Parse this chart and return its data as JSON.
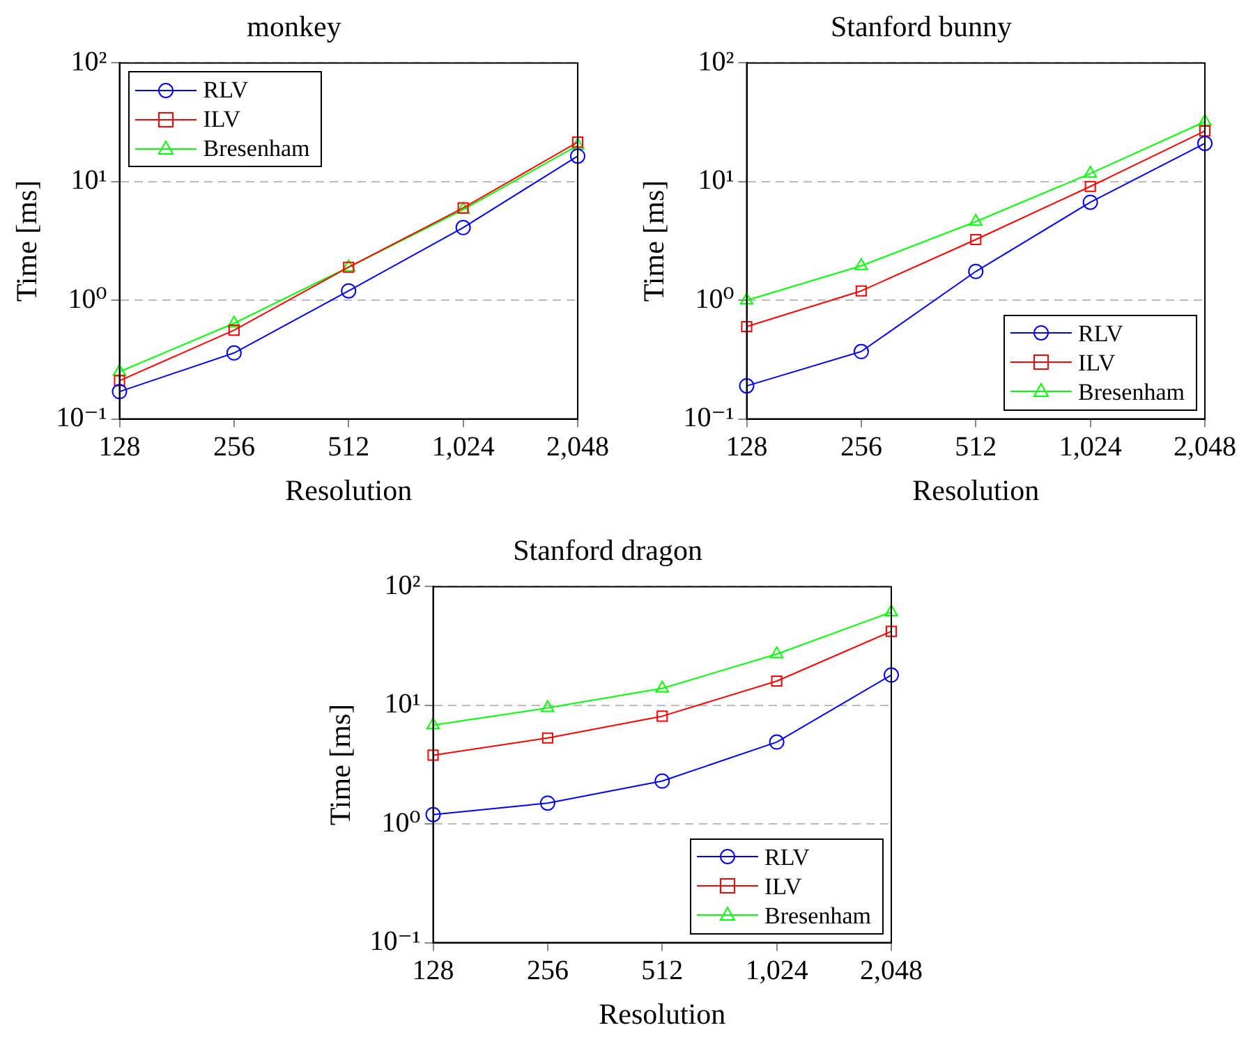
{
  "chart_data": [
    {
      "type": "line",
      "title": "monkey",
      "xlabel": "Resolution",
      "ylabel": "Time [ms]",
      "categories": [
        "128",
        "256",
        "512",
        "1,024",
        "2,048"
      ],
      "log": "y",
      "ylim": [
        0.1,
        100
      ],
      "yticks": [
        {
          "value": 0.1,
          "label": "10⁻¹"
        },
        {
          "value": 1,
          "label": "10⁰"
        },
        {
          "value": 10,
          "label": "10¹"
        },
        {
          "value": 100,
          "label": "10²"
        }
      ],
      "grid": "y",
      "legend": "top left",
      "line_style": "solid",
      "series": [
        {
          "name": "RLV",
          "color": "#0000ff",
          "marker": "circle",
          "values": [
            0.17,
            0.36,
            1.2,
            4.1,
            16.4
          ]
        },
        {
          "name": "ILV",
          "color": "#ff0000",
          "marker": "square",
          "values": [
            0.21,
            0.56,
            1.9,
            6.0,
            21.5
          ]
        },
        {
          "name": "Bresenham",
          "color": "#00ff00",
          "marker": "triangle",
          "values": [
            0.25,
            0.64,
            1.9,
            5.8,
            20.2
          ]
        }
      ]
    },
    {
      "type": "line",
      "title": "Stanford bunny",
      "xlabel": "Resolution",
      "ylabel": "Time [ms]",
      "categories": [
        "128",
        "256",
        "512",
        "1,024",
        "2,048"
      ],
      "log": "y",
      "ylim": [
        0.1,
        100
      ],
      "yticks": [
        {
          "value": 0.1,
          "label": "10⁻¹"
        },
        {
          "value": 1,
          "label": "10⁰"
        },
        {
          "value": 10,
          "label": "10¹"
        },
        {
          "value": 100,
          "label": "10²"
        }
      ],
      "grid": "y",
      "legend": "bottom right",
      "line_style": "solid",
      "series": [
        {
          "name": "RLV",
          "color": "#0000ff",
          "marker": "circle",
          "values": [
            0.19,
            0.37,
            1.75,
            6.7,
            21
          ]
        },
        {
          "name": "ILV",
          "color": "#ff0000",
          "marker": "square",
          "values": [
            0.6,
            1.2,
            3.25,
            9.1,
            26.7
          ]
        },
        {
          "name": "Bresenham",
          "color": "#00ff00",
          "marker": "triangle",
          "values": [
            1.0,
            1.95,
            4.6,
            11.7,
            32
          ]
        }
      ]
    },
    {
      "type": "line",
      "title": "Stanford dragon",
      "xlabel": "Resolution",
      "ylabel": "Time [ms]",
      "categories": [
        "128",
        "256",
        "512",
        "1,024",
        "2,048"
      ],
      "log": "y",
      "ylim": [
        0.1,
        100
      ],
      "yticks": [
        {
          "value": 0.1,
          "label": "10⁻¹"
        },
        {
          "value": 1,
          "label": "10⁰"
        },
        {
          "value": 10,
          "label": "10¹"
        },
        {
          "value": 100,
          "label": "10²"
        }
      ],
      "grid": "y",
      "legend": "bottom right",
      "line_style": "solid",
      "series": [
        {
          "name": "RLV",
          "color": "#0000ff",
          "marker": "circle",
          "values": [
            1.2,
            1.5,
            2.3,
            4.9,
            18
          ]
        },
        {
          "name": "ILV",
          "color": "#ff0000",
          "marker": "square",
          "values": [
            3.8,
            5.3,
            8.1,
            16,
            42
          ]
        },
        {
          "name": "Bresenham",
          "color": "#00ff00",
          "marker": "triangle",
          "values": [
            6.8,
            9.5,
            13.9,
            27,
            61
          ]
        }
      ]
    }
  ]
}
